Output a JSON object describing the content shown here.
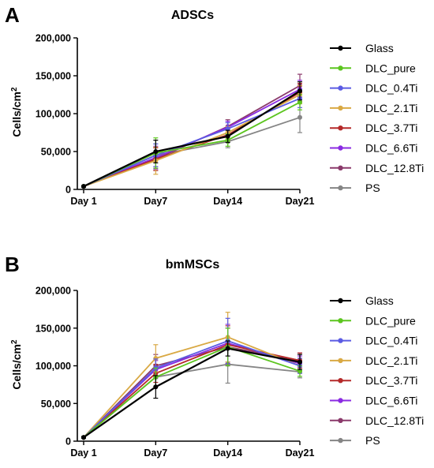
{
  "legend": [
    "Glass",
    "DLC_pure",
    "DLC_0.4Ti",
    "DLC_2.1Ti",
    "DLC_3.7Ti",
    "DLC_6.6Ti",
    "DLC_12.8Ti",
    "PS"
  ],
  "colors": [
    "#000000",
    "#5cc51f",
    "#5b5be3",
    "#d9a944",
    "#b52a2a",
    "#8a2be2",
    "#8b3a6b",
    "#858585"
  ],
  "chart_data": [
    {
      "type": "line",
      "panel": "A",
      "title": "ADSCs",
      "ylabel": "Cells/cm",
      "ylabel_sup": "2",
      "categories": [
        "Day 1",
        "Day7",
        "Day14",
        "Day21"
      ],
      "ylim": [
        0,
        200000
      ],
      "yticks": [
        "0",
        "50,000",
        "100,000",
        "150,000",
        "200,000"
      ],
      "series": [
        {
          "name": "Glass",
          "values": [
            4000,
            50000,
            70000,
            130000
          ],
          "errors": [
            1000,
            15000,
            8000,
            12000
          ]
        },
        {
          "name": "DLC_pure",
          "values": [
            4000,
            48000,
            65000,
            115000
          ],
          "errors": [
            1000,
            20000,
            8000,
            10000
          ]
        },
        {
          "name": "DLC_0.4Ti",
          "values": [
            4000,
            45000,
            80000,
            120000
          ],
          "errors": [
            1000,
            15000,
            8000,
            12000
          ]
        },
        {
          "name": "DLC_2.1Ti",
          "values": [
            4000,
            38000,
            75000,
            125000
          ],
          "errors": [
            1000,
            18000,
            8000,
            12000
          ]
        },
        {
          "name": "DLC_3.7Ti",
          "values": [
            4000,
            40000,
            72000,
            128000
          ],
          "errors": [
            1000,
            15000,
            8000,
            12000
          ]
        },
        {
          "name": "DLC_6.6Ti",
          "values": [
            4000,
            42000,
            82000,
            132000
          ],
          "errors": [
            1000,
            15000,
            8000,
            12000
          ]
        },
        {
          "name": "DLC_12.8Ti",
          "values": [
            4000,
            40000,
            83000,
            137000
          ],
          "errors": [
            1000,
            15000,
            9000,
            15000
          ]
        },
        {
          "name": "PS",
          "values": [
            4000,
            45000,
            63000,
            95000
          ],
          "errors": [
            1000,
            15000,
            8000,
            20000
          ]
        }
      ]
    },
    {
      "type": "line",
      "panel": "B",
      "title": "bmMSCs",
      "ylabel": "Cells/cm",
      "ylabel_sup": "2",
      "categories": [
        "Day 1",
        "Day7",
        "Day14",
        "Day21"
      ],
      "ylim": [
        0,
        200000
      ],
      "yticks": [
        "0",
        "50,000",
        "100,000",
        "150,000",
        "200,000"
      ],
      "series": [
        {
          "name": "Glass",
          "values": [
            5000,
            72000,
            123000,
            105000
          ],
          "errors": [
            1000,
            15000,
            10000,
            10000
          ]
        },
        {
          "name": "DLC_pure",
          "values": [
            5000,
            85000,
            125000,
            93000
          ],
          "errors": [
            1000,
            12000,
            25000,
            7000
          ]
        },
        {
          "name": "DLC_0.4Ti",
          "values": [
            5000,
            97000,
            133000,
            100000
          ],
          "errors": [
            1000,
            12000,
            30000,
            10000
          ]
        },
        {
          "name": "DLC_2.1Ti",
          "values": [
            5000,
            110000,
            138000,
            100000
          ],
          "errors": [
            1000,
            18000,
            33000,
            10000
          ]
        },
        {
          "name": "DLC_3.7Ti",
          "values": [
            5000,
            90000,
            128000,
            107000
          ],
          "errors": [
            1000,
            12000,
            25000,
            10000
          ]
        },
        {
          "name": "DLC_6.6Ti",
          "values": [
            5000,
            95000,
            130000,
            103000
          ],
          "errors": [
            1000,
            12000,
            25000,
            10000
          ]
        },
        {
          "name": "DLC_12.8Ti",
          "values": [
            5000,
            100000,
            125000,
            107000
          ],
          "errors": [
            1000,
            15000,
            25000,
            10000
          ]
        },
        {
          "name": "PS",
          "values": [
            5000,
            85000,
            102000,
            92000
          ],
          "errors": [
            1000,
            12000,
            25000,
            8000
          ]
        }
      ]
    }
  ]
}
